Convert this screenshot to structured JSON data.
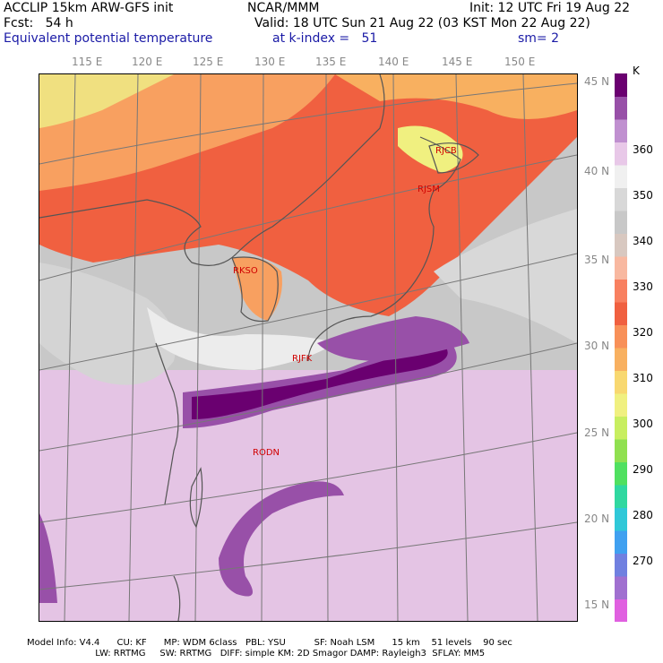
{
  "header": {
    "line1_left": "ACCLIP 15km ARW-GFS init",
    "line1_center": "NCAR/MMM",
    "line1_right": "Init: 12 UTC Fri 19 Aug 22",
    "line2_left": "Fcst:   54 h",
    "line2_right": "Valid: 18 UTC Sun 21 Aug 22 (03 KST Mon 22 Aug 22)",
    "line3_left": "Equivalent potential temperature",
    "line3_center": "at k-index =   51",
    "line3_right": "sm= 2"
  },
  "map": {
    "lon_labels": [
      "115 E",
      "120 E",
      "125 E",
      "130 E",
      "135 E",
      "140 E",
      "145 E",
      "150 E"
    ],
    "lat_labels": [
      "45 N",
      "40 N",
      "35 N",
      "30 N",
      "25 N",
      "20 N",
      "15 N"
    ],
    "stations": [
      "RJCB",
      "RJSM",
      "RKSO",
      "RJFK",
      "RODN"
    ]
  },
  "colorbar": {
    "unit": "K",
    "labels": [
      "360",
      "350",
      "340",
      "330",
      "320",
      "310",
      "300",
      "290",
      "280",
      "270"
    ],
    "colors": [
      "#e060e0",
      "#a070d0",
      "#7080e0",
      "#40a0f0",
      "#30c8d8",
      "#30d8a0",
      "#50e060",
      "#90e050",
      "#c8ee60",
      "#f0f080",
      "#f8d870",
      "#f8b060",
      "#f89058",
      "#f06040",
      "#f88060",
      "#f8b8a0",
      "#d8c8c0",
      "#c8c8c8",
      "#d8d8d8",
      "#f0f0f0",
      "#e8c8e8",
      "#c090d0",
      "#9850a8",
      "#6a0070"
    ]
  },
  "footer": {
    "line1": "Model Info: V4.4      CU: KF      MP: WDM 6class   PBL: YSU          SF: Noah LSM      15 km    51 levels    90 sec",
    "line2": "                        LW: RRTMG     SW: RRTMG   DIFF: simple KM: 2D Smagor DAMP: Rayleigh3  SFLAY: MM5"
  }
}
